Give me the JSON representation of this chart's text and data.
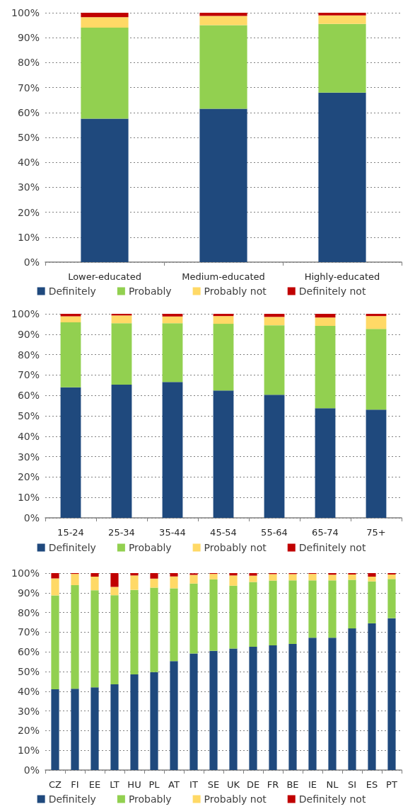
{
  "chart_data": [
    {
      "type": "bar",
      "stacked": true,
      "categories": [
        "Lower-educated",
        "Medium-educated",
        "Highly-educated"
      ],
      "series": [
        {
          "name": "Definitely",
          "color": "#1f497d",
          "values": [
            57.5,
            61.5,
            68
          ]
        },
        {
          "name": "Probably",
          "color": "#92d050",
          "values": [
            36.5,
            33.5,
            27.5
          ]
        },
        {
          "name": "Probably not",
          "color": "#ffd966",
          "values": [
            4.2,
            3.7,
            3.4
          ]
        },
        {
          "name": "Definitely not",
          "color": "#c00000",
          "values": [
            1.8,
            1.3,
            1.1
          ]
        }
      ],
      "ylim": [
        0,
        100
      ],
      "yticks": [
        {
          "value": 0,
          "label": "0%"
        },
        {
          "value": 10,
          "label": "10%"
        },
        {
          "value": 20,
          "label": "20%"
        },
        {
          "value": 30,
          "label": "30%"
        },
        {
          "value": 40,
          "label": "40%"
        },
        {
          "value": 50,
          "label": "50%"
        },
        {
          "value": 60,
          "label": "60%"
        },
        {
          "value": 70,
          "label": "70%"
        },
        {
          "value": 80,
          "label": "80%"
        },
        {
          "value": 90,
          "label": "90%"
        },
        {
          "value": 100,
          "label": "100%"
        }
      ],
      "grid": "y",
      "legend": "bottom"
    },
    {
      "type": "bar",
      "stacked": true,
      "categories": [
        "15-24",
        "25-34",
        "35-44",
        "45-54",
        "55-64",
        "65-74",
        "75+"
      ],
      "series": [
        {
          "name": "Definitely",
          "color": "#1f497d",
          "values": [
            64,
            65.3,
            66.6,
            62.4,
            60.3,
            53.7,
            53
          ]
        },
        {
          "name": "Probably",
          "color": "#92d050",
          "values": [
            31.8,
            30.1,
            28.8,
            32.7,
            34.1,
            40.4,
            39.6
          ]
        },
        {
          "name": "Probably not",
          "color": "#ffd966",
          "values": [
            3,
            3.8,
            3.3,
            3.8,
            4.1,
            4.1,
            6.3
          ]
        },
        {
          "name": "Definitely not",
          "color": "#c00000",
          "values": [
            1.2,
            0.8,
            1.3,
            1.1,
            1.5,
            1.8,
            1.1
          ]
        }
      ],
      "ylim": [
        0,
        100
      ],
      "yticks": [
        {
          "value": 0,
          "label": "0%"
        },
        {
          "value": 10,
          "label": "10%"
        },
        {
          "value": 20,
          "label": "20%"
        },
        {
          "value": 30,
          "label": "30%"
        },
        {
          "value": 40,
          "label": "40%"
        },
        {
          "value": 50,
          "label": "50%"
        },
        {
          "value": 60,
          "label": "60%"
        },
        {
          "value": 70,
          "label": "70%"
        },
        {
          "value": 80,
          "label": "80%"
        },
        {
          "value": 90,
          "label": "90%"
        },
        {
          "value": 100,
          "label": "100%"
        }
      ],
      "grid": "y",
      "legend": "bottom"
    },
    {
      "type": "bar",
      "stacked": true,
      "categories": [
        "CZ",
        "FI",
        "EE",
        "LT",
        "HU",
        "PL",
        "AT",
        "IT",
        "SE",
        "UK",
        "DE",
        "FR",
        "BE",
        "IE",
        "NL",
        "SI",
        "ES",
        "PT"
      ],
      "series": [
        {
          "name": "Definitely",
          "color": "#1f497d",
          "values": [
            41,
            41.3,
            42,
            43.5,
            48.6,
            49.7,
            55.3,
            59.2,
            60.5,
            61.7,
            62.6,
            63.3,
            64,
            67.2,
            67.2,
            71.9,
            74.5,
            77.1
          ]
        },
        {
          "name": "Probably",
          "color": "#92d050",
          "values": [
            47.7,
            52.6,
            49.3,
            45.3,
            42.9,
            42.9,
            37,
            35.5,
            36.3,
            31.9,
            32.9,
            32.9,
            32.3,
            29.1,
            29.1,
            24.7,
            21.3,
            19.9
          ]
        },
        {
          "name": "Probably not",
          "color": "#ffd966",
          "values": [
            8.6,
            5.7,
            6.9,
            4.2,
            7.3,
            4.6,
            6,
            4.4,
            2.8,
            5.2,
            3.2,
            3.3,
            3.2,
            3.3,
            2.9,
            2.7,
            2.4,
            2.3
          ]
        },
        {
          "name": "Definitely not",
          "color": "#c00000",
          "values": [
            2.7,
            0.4,
            1.8,
            7,
            1.2,
            2.8,
            1.7,
            0.8,
            0.4,
            1.2,
            1.3,
            0.5,
            0.5,
            0.4,
            0.8,
            0.7,
            1.8,
            0.7
          ]
        }
      ],
      "ylim": [
        0,
        100
      ],
      "yticks": [
        {
          "value": 0,
          "label": "0%"
        },
        {
          "value": 10,
          "label": "10%"
        },
        {
          "value": 20,
          "label": "20%"
        },
        {
          "value": 30,
          "label": "30%"
        },
        {
          "value": 40,
          "label": "40%"
        },
        {
          "value": 50,
          "label": "50%"
        },
        {
          "value": 60,
          "label": "60%"
        },
        {
          "value": 70,
          "label": "70%"
        },
        {
          "value": 80,
          "label": "80%"
        },
        {
          "value": 90,
          "label": "90%"
        },
        {
          "value": 100,
          "label": "100%"
        }
      ],
      "grid": "y",
      "legend": "bottom"
    }
  ]
}
